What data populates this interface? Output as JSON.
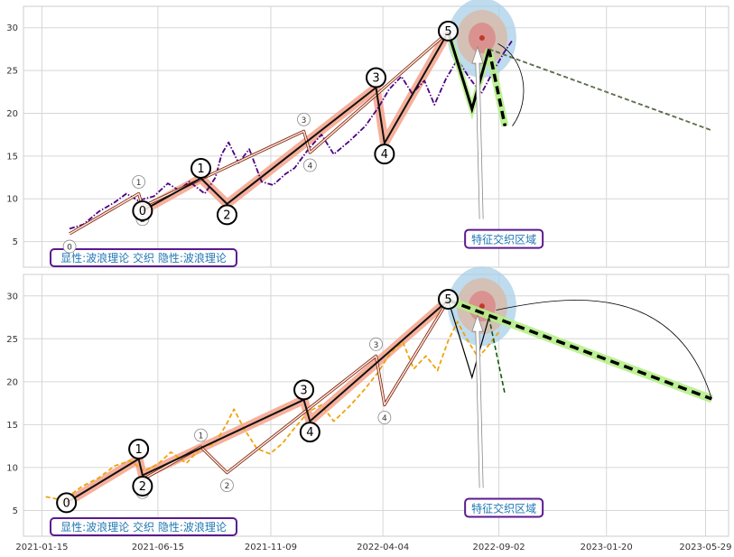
{
  "chart_data": [
    {
      "type": "line",
      "title": "",
      "xlabel": "",
      "ylabel": "",
      "x_ticks": [
        "2021-01-15",
        "2021-06-15",
        "2021-11-09",
        "2022-04-04",
        "2022-09-02",
        "2023-01-20",
        "2023-05-29"
      ],
      "y_ticks": [
        5,
        10,
        15,
        20,
        25,
        30
      ],
      "xlim": [
        "2020-12-22",
        "2023-06-28"
      ],
      "ylim": [
        2,
        32.5
      ],
      "grid": true,
      "price_color": "#4b0082",
      "price_style": "dash-dot",
      "price_series": [
        [
          "2021-02-20",
          6.5
        ],
        [
          "2021-03-10",
          7.0
        ],
        [
          "2021-03-30",
          8.5
        ],
        [
          "2021-04-20",
          9.6
        ],
        [
          "2021-05-05",
          10.6
        ],
        [
          "2021-05-20",
          9.8
        ],
        [
          "2021-06-10",
          10.3
        ],
        [
          "2021-06-28",
          11.8
        ],
        [
          "2021-07-12",
          11.0
        ],
        [
          "2021-07-26",
          12.0
        ],
        [
          "2021-08-15",
          10.6
        ],
        [
          "2021-08-29",
          12.5
        ],
        [
          "2021-09-06",
          15.2
        ],
        [
          "2021-09-15",
          16.6
        ],
        [
          "2021-09-28",
          14.2
        ],
        [
          "2021-10-12",
          15.8
        ],
        [
          "2021-10-28",
          12.0
        ],
        [
          "2021-11-12",
          11.6
        ],
        [
          "2021-11-28",
          12.9
        ],
        [
          "2021-12-10",
          13.6
        ],
        [
          "2021-12-28",
          15.8
        ],
        [
          "2022-01-14",
          17.5
        ],
        [
          "2022-01-30",
          15.2
        ],
        [
          "2022-02-20",
          16.8
        ],
        [
          "2022-03-12",
          18.5
        ],
        [
          "2022-03-30",
          20.8
        ],
        [
          "2022-04-12",
          22.8
        ],
        [
          "2022-04-28",
          24.3
        ],
        [
          "2022-05-12",
          22.3
        ],
        [
          "2022-05-28",
          23.8
        ],
        [
          "2022-06-10",
          21.0
        ],
        [
          "2022-06-25",
          24.0
        ],
        [
          "2022-07-10",
          26.3
        ],
        [
          "2022-07-25",
          24.2
        ],
        [
          "2022-08-10",
          22.3
        ],
        [
          "2022-08-25",
          24.8
        ],
        [
          "2022-09-08",
          27.0
        ],
        [
          "2022-09-20",
          28.6
        ]
      ],
      "waves_primary": [
        {
          "label": "0",
          "date": "2021-05-26",
          "value": 8.6
        },
        {
          "label": "1",
          "date": "2021-08-10",
          "value": 12.4
        },
        {
          "label": "2",
          "date": "2021-09-13",
          "value": 9.4
        },
        {
          "label": "3",
          "date": "2022-03-26",
          "value": 23.0
        },
        {
          "label": "4",
          "date": "2022-04-06",
          "value": 16.5
        },
        {
          "label": "5",
          "date": "2022-06-28",
          "value": 29.5
        }
      ],
      "waves_secondary": [
        {
          "label": "0",
          "date": "2021-02-20",
          "value": 5.9
        },
        {
          "label": "1",
          "date": "2021-05-21",
          "value": 10.6
        },
        {
          "label": "2",
          "date": "2021-05-26",
          "value": 9.1
        },
        {
          "label": "3",
          "date": "2021-12-22",
          "value": 17.9
        },
        {
          "label": "4",
          "date": "2021-12-30",
          "value": 15.4
        },
        {
          "label": "5",
          "date": "2022-06-28",
          "value": 29.5
        }
      ],
      "projection_abc": [
        [
          "2022-06-28",
          29.5
        ],
        [
          "2022-07-29",
          20.5
        ],
        [
          "2022-08-20",
          27.5
        ],
        [
          "2022-09-10",
          18.5
        ]
      ],
      "projection_forecast": [
        [
          "2022-06-28",
          29.5
        ],
        [
          "2023-06-06",
          18.0
        ]
      ],
      "focus_point": {
        "date": "2022-08-11",
        "value": 28.8
      },
      "annotation": {
        "text": "特征交织区域",
        "date": "2022-07-27",
        "value": 5.0
      },
      "legend": "显性:波浪理论 交织 隐性:波浪理论"
    },
    {
      "type": "line",
      "title": "",
      "xlabel": "",
      "ylabel": "",
      "x_ticks": [
        "2021-01-15",
        "2021-06-15",
        "2021-11-09",
        "2022-04-04",
        "2022-09-02",
        "2023-01-20",
        "2023-05-29"
      ],
      "y_ticks": [
        5,
        10,
        15,
        20,
        25,
        30
      ],
      "xlim": [
        "2020-12-22",
        "2023-06-28"
      ],
      "ylim": [
        2,
        32.5
      ],
      "grid": true,
      "price_color": "#f0a30a",
      "price_style": "dashed",
      "price_series": [
        [
          "2021-01-20",
          6.6
        ],
        [
          "2021-02-12",
          6.2
        ],
        [
          "2021-03-08",
          7.8
        ],
        [
          "2021-03-30",
          8.8
        ],
        [
          "2021-04-20",
          10.2
        ],
        [
          "2021-05-10",
          10.8
        ],
        [
          "2021-05-28",
          9.6
        ],
        [
          "2021-06-15",
          10.4
        ],
        [
          "2021-07-02",
          11.8
        ],
        [
          "2021-07-22",
          10.5
        ],
        [
          "2021-08-10",
          12.3
        ],
        [
          "2021-08-28",
          12.8
        ],
        [
          "2021-09-12",
          15.0
        ],
        [
          "2021-09-22",
          16.8
        ],
        [
          "2021-10-06",
          14.4
        ],
        [
          "2021-10-22",
          12.2
        ],
        [
          "2021-11-08",
          11.6
        ],
        [
          "2021-11-24",
          12.8
        ],
        [
          "2021-12-10",
          14.6
        ],
        [
          "2021-12-28",
          16.5
        ],
        [
          "2022-01-14",
          17.3
        ],
        [
          "2022-01-30",
          15.4
        ],
        [
          "2022-02-20",
          17.2
        ],
        [
          "2022-03-10",
          19.0
        ],
        [
          "2022-03-28",
          21.0
        ],
        [
          "2022-04-14",
          23.4
        ],
        [
          "2022-04-30",
          24.6
        ],
        [
          "2022-05-14",
          21.5
        ],
        [
          "2022-05-30",
          23.0
        ],
        [
          "2022-06-14",
          21.3
        ],
        [
          "2022-06-28",
          24.8
        ],
        [
          "2022-07-10",
          27.0
        ],
        [
          "2022-07-22",
          25.0
        ],
        [
          "2022-08-06",
          22.8
        ],
        [
          "2022-08-20",
          24.3
        ],
        [
          "2022-09-02",
          25.8
        ]
      ],
      "waves_primary": [
        {
          "label": "0",
          "date": "2021-02-16",
          "value": 5.9
        },
        {
          "label": "1",
          "date": "2021-05-21",
          "value": 11.0
        },
        {
          "label": "2",
          "date": "2021-05-26",
          "value": 9.1
        },
        {
          "label": "3",
          "date": "2021-12-22",
          "value": 17.9
        },
        {
          "label": "4",
          "date": "2021-12-30",
          "value": 15.4
        },
        {
          "label": "5",
          "date": "2022-06-28",
          "value": 29.5
        }
      ],
      "waves_secondary": [
        {
          "label": "0",
          "date": "2021-05-26",
          "value": 8.6
        },
        {
          "label": "1",
          "date": "2021-08-10",
          "value": 12.4
        },
        {
          "label": "2",
          "date": "2021-09-13",
          "value": 9.4
        },
        {
          "label": "3",
          "date": "2022-03-26",
          "value": 23.0
        },
        {
          "label": "4",
          "date": "2022-04-06",
          "value": 17.3
        },
        {
          "label": "5",
          "date": "2022-06-28",
          "value": 29.5
        }
      ],
      "projection_abc": [
        [
          "2022-06-28",
          29.5
        ],
        [
          "2022-07-29",
          20.5
        ],
        [
          "2022-08-20",
          27.5
        ],
        [
          "2022-09-10",
          18.5
        ]
      ],
      "projection_forecast": [
        [
          "2022-06-28",
          29.5
        ],
        [
          "2023-06-06",
          18.0
        ]
      ],
      "focus_point": {
        "date": "2022-08-11",
        "value": 28.8
      },
      "annotation": {
        "text": "特征交织区域",
        "date": "2022-07-27",
        "value": 5.0
      },
      "legend": "显性:波浪理论 交织 隐性:波浪理论"
    }
  ]
}
